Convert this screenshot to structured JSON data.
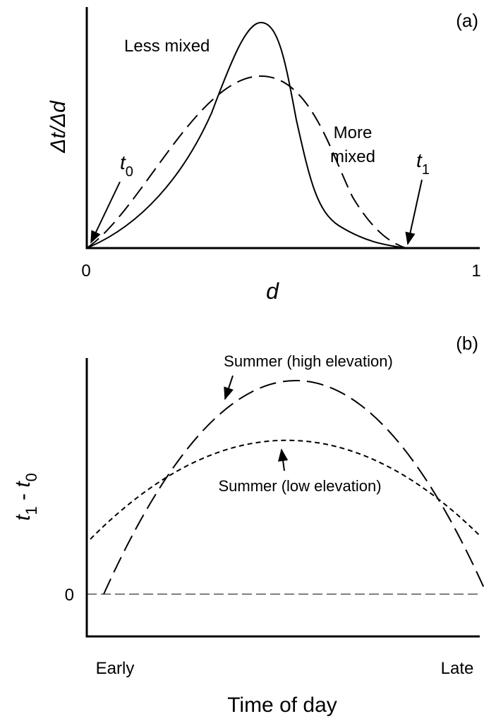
{
  "panel_a": {
    "label": "(a)",
    "curve_solid_label": "Less mixed",
    "curve_dashed_label": [
      "More",
      "mixed"
    ],
    "start_label": {
      "base": "t",
      "sub": "0"
    },
    "end_label": {
      "base": "t",
      "sub": "1"
    },
    "y_label": "Δt/Δd",
    "x_ticks": [
      "0",
      "1"
    ],
    "x_label": "d"
  },
  "panel_b": {
    "label": "(b)",
    "curve_high_label": "Summer (high elevation)",
    "curve_low_label": "Summer (low elevation)",
    "y_label": {
      "a": "t",
      "a_sub": "1",
      "mid": " - ",
      "b": "t",
      "b_sub": "0"
    },
    "y_tick": "0",
    "x_start": "Early",
    "x_end": "Late",
    "x_label": "Time of day"
  }
}
